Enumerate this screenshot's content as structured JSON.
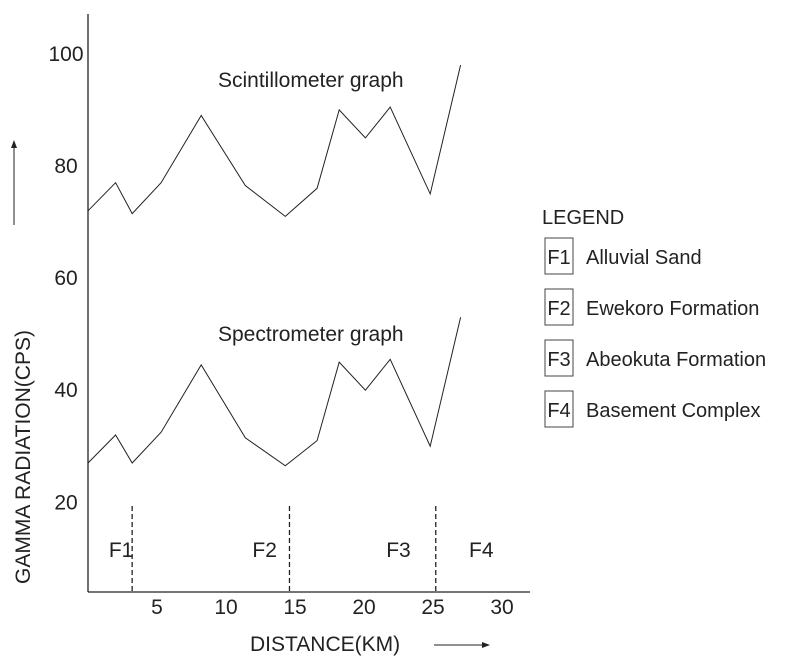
{
  "chart_data": {
    "type": "line",
    "title": "",
    "xlabel": "DISTANCE(KM)",
    "ylabel": "GAMMA RADIATION(CPS)",
    "xlim": [
      0,
      32
    ],
    "ylim": [
      0,
      108
    ],
    "x_ticks": [
      "5",
      "10",
      "15",
      "20",
      "25",
      "30"
    ],
    "y_ticks": [
      "20",
      "40",
      "60",
      "80",
      "100"
    ],
    "grid": false,
    "series": [
      {
        "name": "Scintillometer graph",
        "points": [
          [
            0,
            72
          ],
          [
            2,
            77
          ],
          [
            3.2,
            71.5
          ],
          [
            5.3,
            77
          ],
          [
            8.2,
            89
          ],
          [
            11.4,
            76.5
          ],
          [
            14.3,
            71
          ],
          [
            16.6,
            76
          ],
          [
            18.2,
            90
          ],
          [
            20.1,
            85
          ],
          [
            21.9,
            90.5
          ],
          [
            24.8,
            75
          ],
          [
            27,
            98
          ]
        ]
      },
      {
        "name": "Spectrometer graph",
        "points": [
          [
            0,
            27
          ],
          [
            2,
            32
          ],
          [
            3.2,
            27
          ],
          [
            5.3,
            32.5
          ],
          [
            8.2,
            44.5
          ],
          [
            11.4,
            31.5
          ],
          [
            14.3,
            26.5
          ],
          [
            16.6,
            31
          ],
          [
            18.2,
            45
          ],
          [
            20.1,
            40
          ],
          [
            21.9,
            45.5
          ],
          [
            24.8,
            30
          ],
          [
            27,
            53
          ]
        ]
      }
    ],
    "boundaries": [
      3.2,
      14.6,
      25.2
    ],
    "zones": [
      {
        "label": "F1",
        "x": 2.4
      },
      {
        "label": "F2",
        "x": 12.8
      },
      {
        "label": "F3",
        "x": 22.5
      },
      {
        "label": "F4",
        "x": 28.5
      }
    ],
    "legend": {
      "title": "LEGEND",
      "position": "right",
      "entries": [
        {
          "key": "F1",
          "label": "Alluvial Sand"
        },
        {
          "key": "F2",
          "label": "Ewekoro Formation"
        },
        {
          "key": "F3",
          "label": "Abeokuta Formation"
        },
        {
          "key": "F4",
          "label": "Basement Complex"
        }
      ]
    },
    "color": "#222222"
  }
}
